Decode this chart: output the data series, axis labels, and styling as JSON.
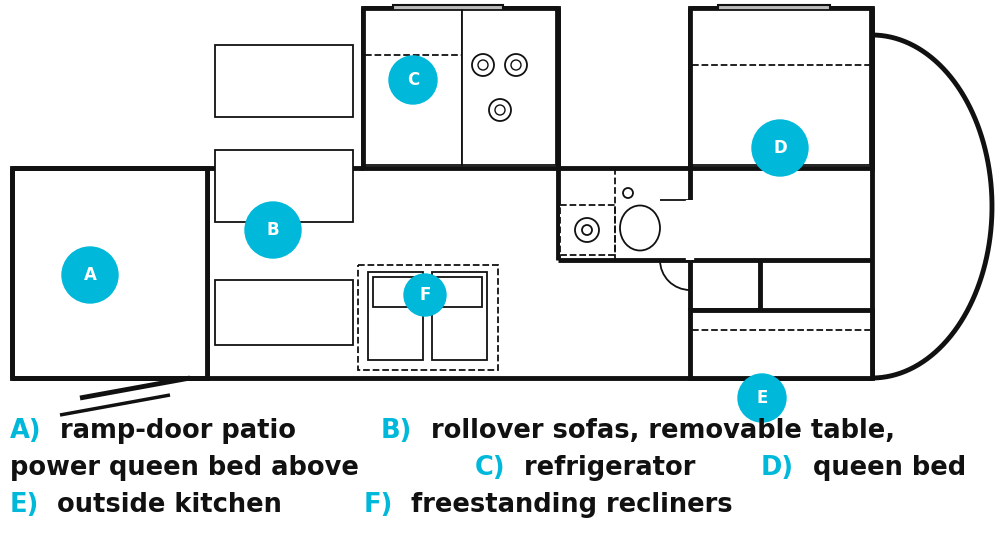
{
  "bg_color": "#ffffff",
  "wc": "#111111",
  "cc": "#00b8d9",
  "legend_lines": [
    [
      {
        "t": "A)",
        "c": "#00b8d9"
      },
      {
        "t": " ramp-door patio ",
        "c": "#111111"
      },
      {
        "t": "B)",
        "c": "#00b8d9"
      },
      {
        "t": " rollover sofas, removable table,",
        "c": "#111111"
      }
    ],
    [
      {
        "t": "power queen bed above ",
        "c": "#111111"
      },
      {
        "t": "C)",
        "c": "#00b8d9"
      },
      {
        "t": " refrigerator ",
        "c": "#111111"
      },
      {
        "t": "D)",
        "c": "#00b8d9"
      },
      {
        "t": " queen bed",
        "c": "#111111"
      }
    ],
    [
      {
        "t": "E)",
        "c": "#00b8d9"
      },
      {
        "t": " outside kitchen ",
        "c": "#111111"
      },
      {
        "t": "F)",
        "c": "#00b8d9"
      },
      {
        "t": " freestanding recliners",
        "c": "#111111"
      }
    ]
  ]
}
